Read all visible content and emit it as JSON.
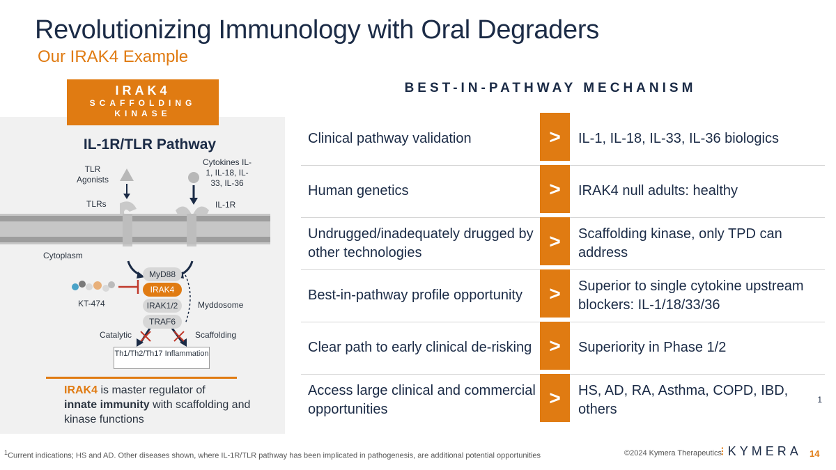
{
  "title": "Revolutionizing Immunology with Oral Degraders",
  "subtitle": "Our IRAK4 Example",
  "left": {
    "box_line1": "IRAK4",
    "box_line2": "SCAFFOLDING",
    "box_line3": "KINASE",
    "pathway_title": "IL-1R/TLR Pathway",
    "tlr_agonists": "TLR Agonists",
    "cytokines": "Cytokines IL-1, IL-18, IL-33, IL-36",
    "tlrs": "TLRs",
    "il1r": "IL-1R",
    "cytoplasm": "Cytoplasm",
    "kt474": "KT-474",
    "myddosome": "Myddosome",
    "nodes": [
      "MyD88",
      "IRAK4",
      "IRAK1/2",
      "TRAF6"
    ],
    "catalytic": "Catalytic",
    "scaffolding": "Scaffolding",
    "outcome": "Th1/Th2/Th17 Inflammation",
    "master_hl": "IRAK4",
    "master_1": " is master regulator of",
    "master_b": "innate immunity",
    "master_2": " with scaffolding and kinase functions"
  },
  "mechanism_heading": "BEST-IN-PATHWAY MECHANISM",
  "chevron": ">",
  "rows": [
    {
      "left": "Clinical pathway validation",
      "right": "IL-1, IL-18, IL-33, IL-36 biologics"
    },
    {
      "left": "Human genetics",
      "right": "IRAK4 null adults: healthy"
    },
    {
      "left": "Undrugged/inadequately drugged by other technologies",
      "right": "Scaffolding kinase, only TPD can address"
    },
    {
      "left": "Best-in-pathway profile opportunity",
      "right": "Superior to single cytokine upstream blockers: IL-1/18/33/36"
    },
    {
      "left": "Clear path to early clinical de-risking",
      "right": "Superiority in Phase 1/2"
    },
    {
      "left": "Access large clinical and commercial opportunities",
      "right": "HS, AD, RA, Asthma, COPD, IBD, others",
      "right_sup": "1"
    }
  ],
  "footnote_sup": "1",
  "footnote": "Current indications; HS and AD. Other diseases shown, where IL-1R/TLR pathway has been implicated in pathogenesis, are additional potential opportunities",
  "copyright": "©2024 Kymera Therapeutics",
  "logo": "KYMERA",
  "page_number": "14",
  "colors": {
    "accent": "#e07b12",
    "navy": "#1b2b46",
    "panel": "#f1f1f1"
  }
}
